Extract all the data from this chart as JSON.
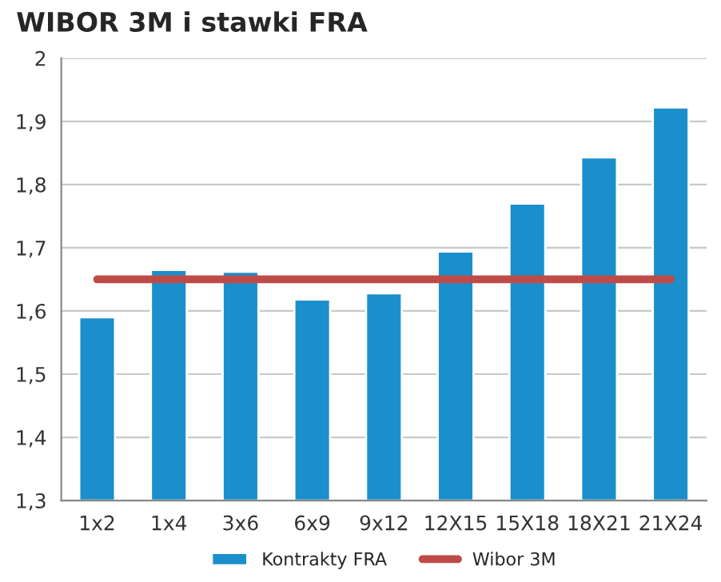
{
  "chart_data": {
    "type": "bar",
    "title": "WIBOR 3M i stawki FRA",
    "categories": [
      "1x2",
      "1x4",
      "3x6",
      "6x9",
      "9x12",
      "12X15",
      "15X18",
      "18X21",
      "21X24"
    ],
    "series": [
      {
        "name": "Kontrakty FRA",
        "color": "#1a8fcc",
        "values": [
          1.59,
          1.665,
          1.662,
          1.618,
          1.628,
          1.694,
          1.77,
          1.843,
          1.922
        ]
      },
      {
        "name": "Wibor 3M",
        "type": "line",
        "color": "#be4b48",
        "values": [
          1.65,
          1.65,
          1.65,
          1.65,
          1.65,
          1.65,
          1.65,
          1.65,
          1.65
        ]
      }
    ],
    "ylim": [
      1.3,
      2
    ],
    "yticks": [
      {
        "value": 1.3,
        "label": "1,3"
      },
      {
        "value": 1.4,
        "label": "1,4"
      },
      {
        "value": 1.5,
        "label": "1,5"
      },
      {
        "value": 1.6,
        "label": "1,6"
      },
      {
        "value": 1.7,
        "label": "1,7"
      },
      {
        "value": 1.8,
        "label": "1,8"
      },
      {
        "value": 1.9,
        "label": "1,9"
      },
      {
        "value": 2,
        "label": "2"
      }
    ],
    "grid": "y",
    "legend": "bottom",
    "marker": "none",
    "line_style": "solid"
  }
}
